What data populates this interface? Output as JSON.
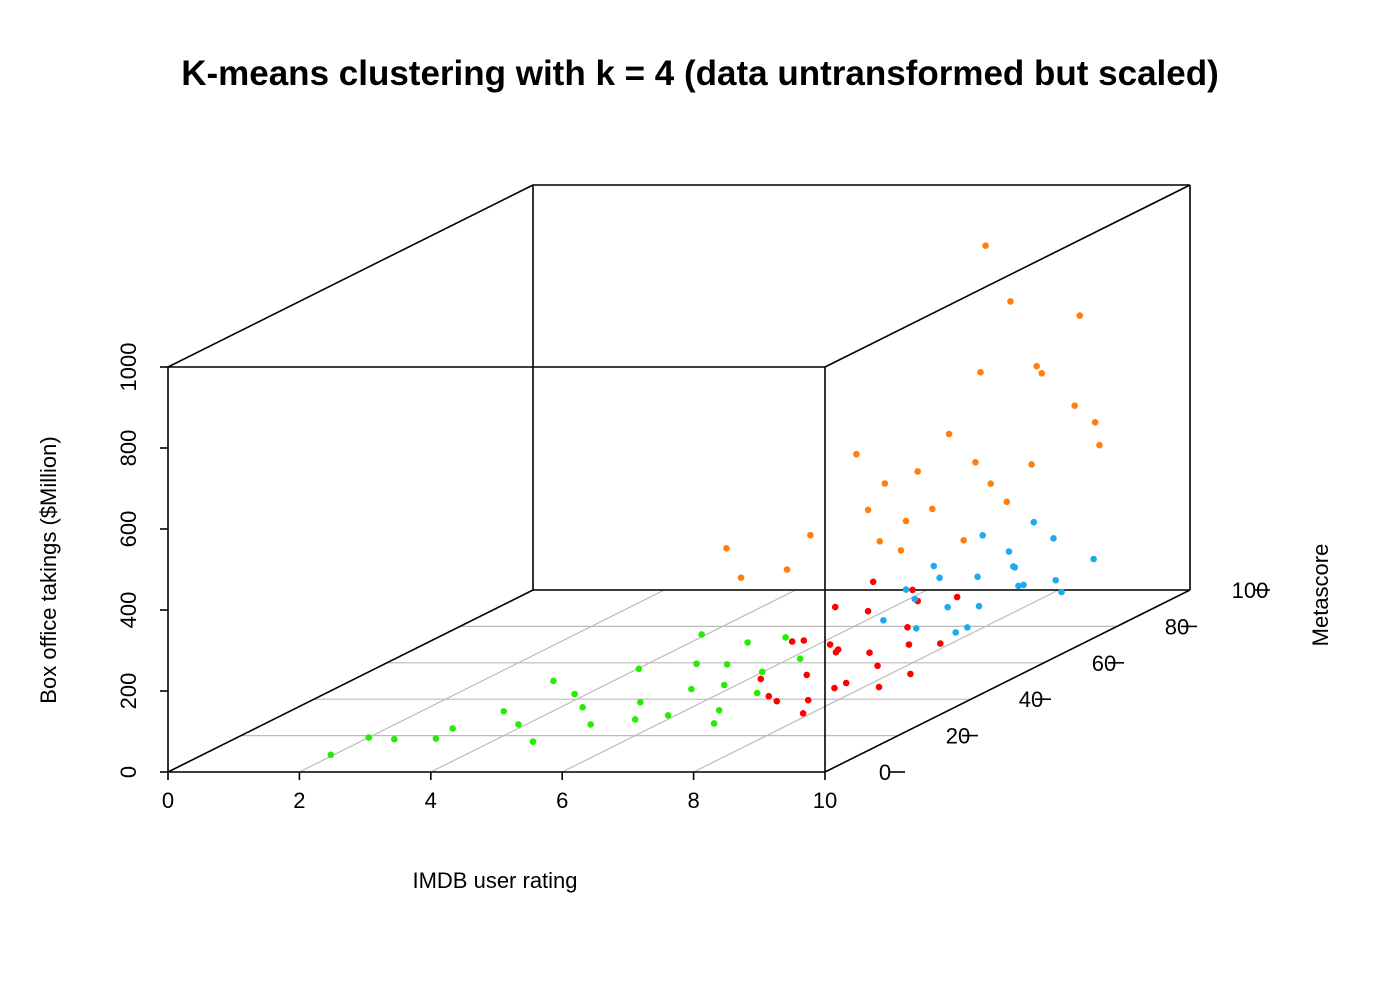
{
  "chart_data": {
    "type": "scatter3d",
    "title": "K-means clustering with k = 4 (data untransformed but scaled)",
    "x_label": "IMDB user rating",
    "y_label": "Metascore",
    "z_label": "Box office takings ($Million)",
    "xlim": [
      0,
      10
    ],
    "xticks": [
      0,
      2,
      4,
      6,
      8,
      10
    ],
    "ylim": [
      0,
      100
    ],
    "yticks": [
      0,
      20,
      40,
      60,
      80,
      100
    ],
    "zlim": [
      0,
      1000
    ],
    "zticks": [
      0,
      200,
      400,
      600,
      800,
      1000
    ],
    "grid": true,
    "series": [
      {
        "color": "#22ee00",
        "x": [
          2.2,
          2.5,
          3,
          3.5,
          3.8,
          4,
          4.5,
          4.8,
          5,
          5.2,
          5.5,
          5.6,
          5.8,
          6,
          6.1,
          6.3,
          6.5,
          6.6,
          6.8,
          7,
          7.1,
          7.3,
          7.4,
          5.9,
          4.2,
          6.9,
          7.2,
          6.4
        ],
        "y": [
          5,
          10,
          8,
          15,
          5,
          20,
          15,
          25,
          10,
          20,
          30,
          15,
          25,
          20,
          35,
          30,
          20,
          40,
          30,
          25,
          35,
          30,
          40,
          40,
          30,
          45,
          20,
          38
        ],
        "z": [
          20,
          40,
          45,
          40,
          60,
          60,
          50,
          80,
          30,
          70,
          120,
          50,
          60,
          40,
          110,
          70,
          50,
          140,
          80,
          40,
          90,
          60,
          100,
          160,
          90,
          130,
          30,
          95
        ]
      },
      {
        "color": "#ff0000",
        "x": [
          6.8,
          7,
          7.2,
          7.3,
          7.5,
          7.6,
          7.7,
          7.8,
          7.9,
          8,
          8.1,
          8.2,
          8.3,
          8.4,
          8.5,
          8.6,
          7.4,
          7.1,
          8,
          8.7,
          6.9,
          7.8,
          8.2,
          7.5,
          8.8,
          7.6
        ],
        "y": [
          40,
          45,
          35,
          50,
          40,
          55,
          45,
          35,
          50,
          60,
          40,
          55,
          45,
          65,
          50,
          40,
          60,
          55,
          30,
          55,
          50,
          65,
          35,
          48,
          45,
          30
        ],
        "z": [
          50,
          120,
          30,
          90,
          60,
          150,
          100,
          20,
          70,
          180,
          40,
          110,
          60,
          140,
          90,
          30,
          200,
          160,
          10,
          70,
          100,
          130,
          50,
          80,
          40,
          40
        ]
      },
      {
        "color": "#1eaaf0",
        "x": [
          7,
          7.2,
          7.3,
          7.5,
          7.6,
          7.7,
          7.8,
          7.9,
          8,
          8.1,
          8.2,
          8.3,
          8.4,
          8.5,
          7.4,
          7.9,
          8.6,
          8.7,
          7.1,
          8,
          6.9,
          8.2
        ],
        "y": [
          70,
          75,
          80,
          70,
          85,
          75,
          90,
          80,
          88,
          70,
          95,
          85,
          92,
          80,
          90,
          95,
          90,
          97,
          82,
          75,
          78,
          84
        ],
        "z": [
          60,
          90,
          120,
          40,
          100,
          70,
          140,
          50,
          110,
          30,
          150,
          80,
          60,
          100,
          180,
          190,
          40,
          90,
          140,
          20,
          100,
          130
        ]
      },
      {
        "color": "#ff7f0e",
        "x": [
          6,
          6.5,
          7,
          7.2,
          7.5,
          7.6,
          7.8,
          7.7,
          8,
          8,
          8.1,
          8.2,
          8.3,
          8.4,
          8.5,
          8.6,
          8.7,
          8.8,
          8.9,
          7.9,
          8.3,
          7.3,
          8.6,
          9,
          8.5,
          7.8,
          8.1
        ],
        "y": [
          45,
          40,
          50,
          40,
          60,
          55,
          65,
          50,
          70,
          80,
          85,
          75,
          90,
          70,
          85,
          95,
          80,
          90,
          95,
          60,
          60,
          65,
          75,
          92,
          65,
          85,
          55
        ],
        "z": [
          350,
          300,
          360,
          320,
          300,
          400,
          450,
          560,
          520,
          940,
          780,
          650,
          580,
          450,
          620,
          700,
          400,
          500,
          380,
          350,
          380,
          420,
          330,
          450,
          280,
          330,
          300
        ]
      }
    ]
  }
}
